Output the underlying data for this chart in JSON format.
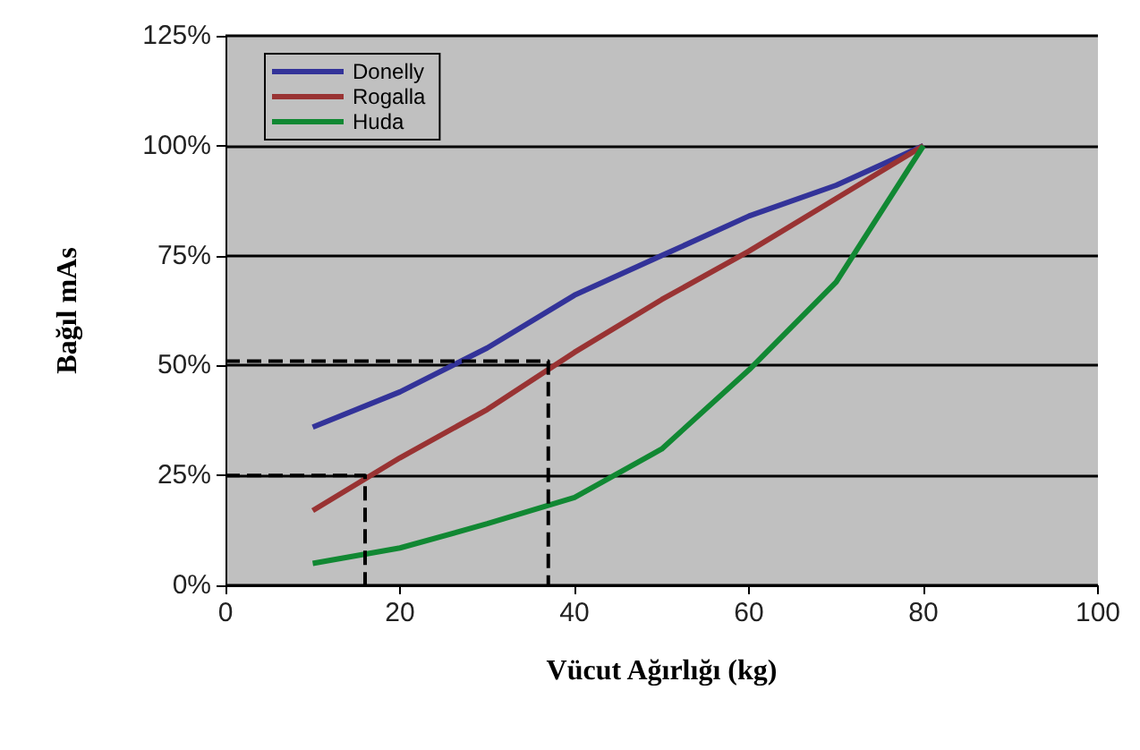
{
  "chart_data": {
    "type": "line",
    "xlabel": "Vücut Ağırlığı (kg)",
    "ylabel": "Bağıl mAs",
    "xlim": [
      0,
      100
    ],
    "xticks": [
      0,
      20,
      40,
      60,
      80,
      100
    ],
    "ylim": [
      0,
      125
    ],
    "yticks": [
      {
        "value": 0,
        "label": "0%"
      },
      {
        "value": 25,
        "label": "25%"
      },
      {
        "value": 50,
        "label": "50%"
      },
      {
        "value": 75,
        "label": "75%"
      },
      {
        "value": 100,
        "label": "100%"
      },
      {
        "value": 125,
        "label": "125%"
      }
    ],
    "grid": "y",
    "legend": "top left",
    "marker": "none",
    "line_style": "solid",
    "series": [
      {
        "name": "Donelly",
        "color": "#333399",
        "x": [
          10,
          20,
          30,
          40,
          50,
          60,
          70,
          80
        ],
        "values": [
          36,
          44,
          54,
          66,
          75,
          84,
          91,
          100
        ]
      },
      {
        "name": "Rogalla",
        "color": "#993333",
        "x": [
          10,
          20,
          30,
          40,
          50,
          60,
          70,
          80
        ],
        "values": [
          17,
          29,
          40,
          53,
          65,
          76,
          88,
          100
        ]
      },
      {
        "name": "Huda",
        "color": "#118833",
        "x": [
          10,
          20,
          30,
          40,
          50,
          60,
          70,
          80
        ],
        "values": [
          5,
          8.5,
          14,
          20,
          31,
          49,
          69,
          100
        ]
      },
      {
        "color": "#000000",
        "line_style": "dashed",
        "x": [
          0,
          37,
          37
        ],
        "values": [
          51,
          51,
          0
        ]
      },
      {
        "color": "#000000",
        "line_style": "dashed",
        "x": [
          0,
          16,
          16
        ],
        "values": [
          25,
          25,
          0
        ]
      }
    ]
  }
}
